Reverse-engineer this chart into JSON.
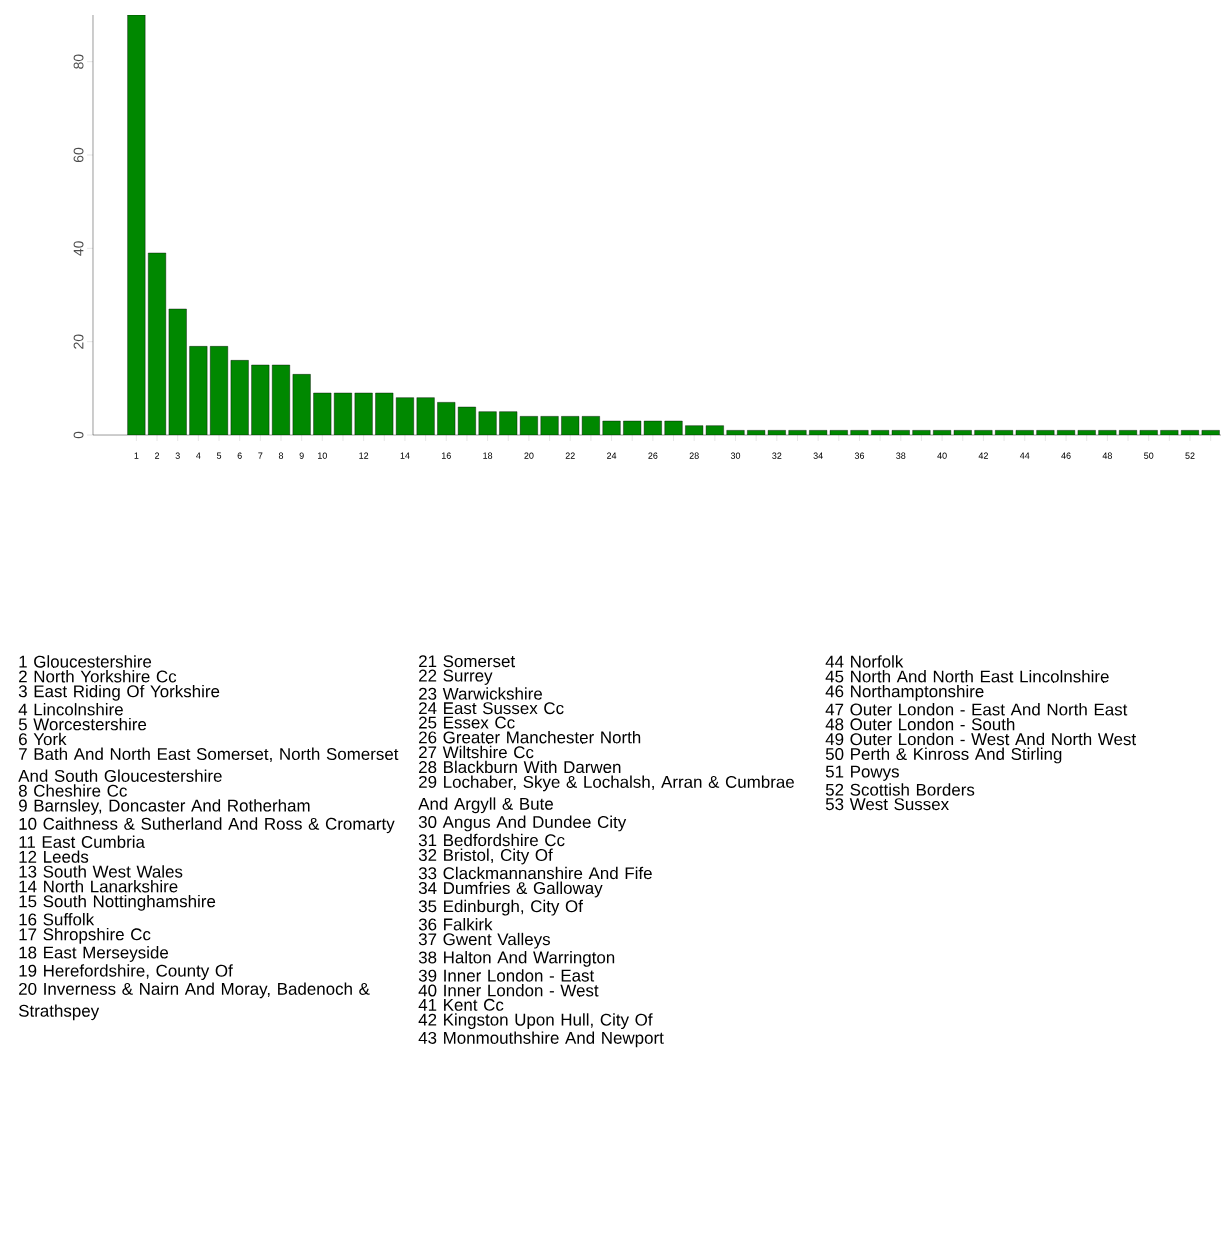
{
  "chart_data": {
    "type": "bar",
    "categories": [
      "1",
      "2",
      "3",
      "4",
      "5",
      "6",
      "7",
      "8",
      "9",
      "10",
      null,
      "12",
      null,
      "14",
      null,
      "16",
      null,
      "18",
      null,
      "20",
      null,
      "22",
      null,
      "24",
      null,
      "26",
      null,
      "28",
      null,
      "30",
      null,
      "32",
      null,
      "34",
      null,
      "36",
      null,
      "38",
      null,
      "40",
      null,
      "42",
      null,
      "44",
      null,
      "46",
      null,
      "48",
      null,
      "50",
      null,
      "52",
      null
    ],
    "values": [
      90,
      39,
      27,
      19,
      19,
      16,
      15,
      15,
      13,
      9,
      9,
      9,
      9,
      8,
      8,
      7,
      6,
      5,
      5,
      4,
      4,
      4,
      4,
      3,
      3,
      3,
      3,
      2,
      2,
      1,
      1,
      1,
      1,
      1,
      1,
      1,
      1,
      1,
      1,
      1,
      1,
      1,
      1,
      1,
      1,
      1,
      1,
      1,
      1,
      1,
      1,
      1,
      1
    ],
    "color": "#008800",
    "ylim": [
      0,
      90
    ],
    "yticks": [
      0,
      20,
      40,
      60,
      80
    ],
    "grid": false,
    "legend": false,
    "annotations": [
      "1 Gloucestershire",
      "2 North Yorkshire Cc",
      "3 East Riding Of Yorkshire",
      "4 Lincolnshire",
      "5 Worcestershire",
      "6 York",
      "7 Bath And North East Somerset, North Somerset And South Gloucestershire",
      "8 Cheshire Cc",
      "9 Barnsley, Doncaster And Rotherham",
      "10 Caithness & Sutherland And Ross & Cromarty",
      "11 East Cumbria",
      "12 Leeds",
      "13 South West Wales",
      "14 North Lanarkshire",
      "15 South Nottinghamshire",
      "16 Suffolk",
      "17 Shropshire Cc",
      "18 East Merseyside",
      "19 Herefordshire, County Of",
      "20 Inverness & Nairn And Moray, Badenoch & Strathspey",
      "21 Somerset",
      "22 Surrey",
      "23 Warwickshire",
      "24 East Sussex Cc",
      "25 Essex Cc",
      "26 Greater Manchester North",
      "27 Wiltshire Cc",
      "28 Blackburn With Darwen",
      "29 Lochaber, Skye & Lochalsh, Arran & Cumbrae And Argyll & Bute",
      "30 Angus And Dundee City",
      "31 Bedfordshire Cc",
      "32 Bristol, City Of",
      "33 Clackmannanshire And Fife",
      "34 Dumfries & Galloway",
      "35 Edinburgh, City Of",
      "36 Falkirk",
      "37 Gwent Valleys",
      "38 Halton And Warrington",
      "39 Inner London - East",
      "40 Inner London - West",
      "41 Kent Cc",
      "42 Kingston Upon Hull, City Of",
      "43 Monmouthshire And Newport",
      "44 Norfolk",
      "45 North And North East Lincolnshire",
      "46 Northamptonshire",
      "47 Outer London - East And North East",
      "48 Outer London - South",
      "49 Outer London - West And North West",
      "50 Perth & Kinross And Stirling",
      "51 Powys",
      "52 Scottish Borders",
      "53 West Sussex"
    ]
  }
}
